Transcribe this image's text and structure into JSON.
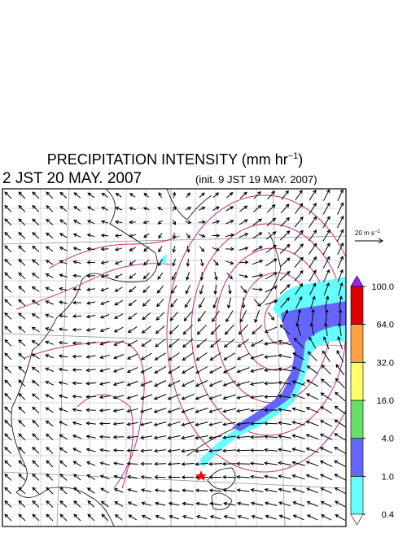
{
  "header": {
    "title": "PRECIPITATION INTENSITY (mm hr",
    "title_sup": "−1",
    "title_end": ")",
    "valid_time": "2 JST 20 MAY. 2007",
    "init_time": "(init. 9 JST 19 MAY. 2007)"
  },
  "wind_reference": {
    "label": "20 m s",
    "label_sup": "−1"
  },
  "colorbar": {
    "levels": [
      0.4,
      {
        "value": 1,
        "label": "1.0"
      },
      {
        "value": 4,
        "label": "4.0"
      },
      {
        "value": 16,
        "label": "16.0"
      },
      {
        "value": 32,
        "label": "32.0"
      },
      {
        "value": 64,
        "label": "64.0"
      },
      {
        "value": 100,
        "label": "100.0"
      }
    ],
    "colors": [
      "#66ffff",
      "#6666ff",
      "#66e066",
      "#ffff66",
      "#ffa040",
      "#e00000"
    ],
    "over_color": "#a020f0",
    "under_color": "#ffffff"
  }
}
